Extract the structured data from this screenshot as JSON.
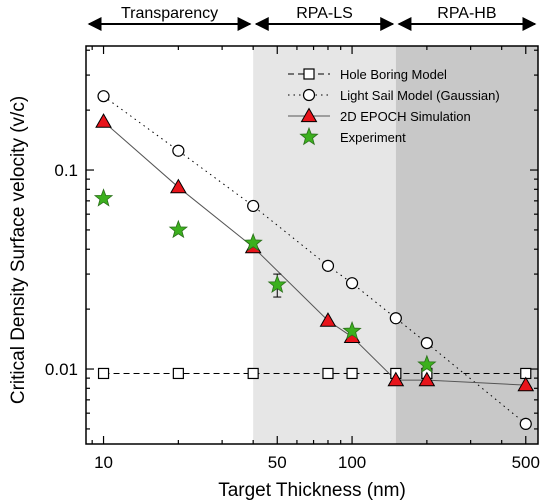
{
  "chart_data": {
    "type": "scatter",
    "xscale": "log",
    "yscale": "log",
    "xlim": [
      8.5,
      560
    ],
    "ylim": [
      0.0042,
      0.42
    ],
    "xlabel": "Target Thickness (nm)",
    "ylabel": "Critical Density Surface velocity (v/c)",
    "x_ticks": [
      10,
      50,
      100,
      500
    ],
    "x_tick_labels": [
      "10",
      "50",
      "100",
      "500"
    ],
    "y_ticks": [
      0.01,
      0.1
    ],
    "y_tick_labels": [
      "0.01",
      "0.1"
    ],
    "regions": [
      {
        "label": "Transparency",
        "x_start": 8.5,
        "x_end": 40,
        "fill": "#ffffff"
      },
      {
        "label": "RPA-LS",
        "x_start": 40,
        "x_end": 150,
        "fill": "#e6e6e6"
      },
      {
        "label": "RPA-HB",
        "x_start": 150,
        "x_end": 560,
        "fill": "#c8c8c8"
      }
    ],
    "legend_position": "top-right",
    "series": [
      {
        "name": "Hole Boring Model",
        "marker": "square",
        "line": "dashed",
        "color": "#000000",
        "x": [
          10,
          20,
          40,
          80,
          100,
          150,
          200,
          500
        ],
        "y": [
          0.0095,
          0.0095,
          0.0095,
          0.0095,
          0.0095,
          0.0095,
          0.0095,
          0.0095
        ]
      },
      {
        "name": "Light Sail Model (Gaussian)",
        "marker": "circle",
        "line": "dotted",
        "color": "#000000",
        "x": [
          10,
          20,
          40,
          80,
          100,
          150,
          200,
          500
        ],
        "y": [
          0.235,
          0.125,
          0.066,
          0.033,
          0.027,
          0.018,
          0.0135,
          0.0053
        ]
      },
      {
        "name": "2D EPOCH Simulation",
        "marker": "triangle",
        "line": "solid",
        "color": "#e8141b",
        "x": [
          10,
          20,
          40,
          80,
          100,
          150,
          200,
          500
        ],
        "y": [
          0.175,
          0.082,
          0.041,
          0.0175,
          0.0145,
          0.0088,
          0.0088,
          0.0083
        ]
      },
      {
        "name": "Experiment",
        "marker": "star",
        "line": "none",
        "color": "#3cb01e",
        "x": [
          10,
          20,
          40,
          50,
          100,
          200
        ],
        "y": [
          0.072,
          0.05,
          0.043,
          0.0265,
          0.0155,
          0.0105
        ],
        "y_err": [
          0,
          0,
          0,
          0.0035,
          0,
          0
        ]
      }
    ]
  }
}
